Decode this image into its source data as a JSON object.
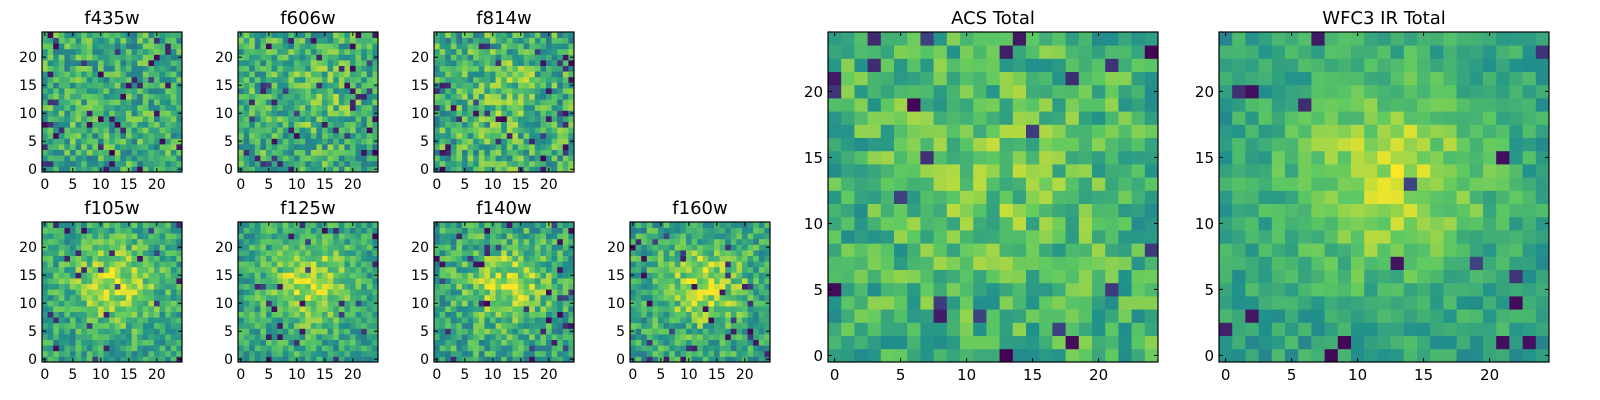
{
  "figure": {
    "description_colormap": "viridis",
    "colormap_stops": [
      "#440154",
      "#3b528b",
      "#21918c",
      "#5ec962",
      "#fde725"
    ]
  },
  "chart_data": [
    {
      "type": "heatmap",
      "title": "f435w",
      "grid_size": 25,
      "xlim": [
        0,
        24
      ],
      "ylim": [
        0,
        24
      ],
      "xticks": [
        "0",
        "5",
        "10",
        "15",
        "20"
      ],
      "yticks": [
        "0",
        "5",
        "10",
        "15",
        "20"
      ],
      "pattern": {
        "seed": 11,
        "mean": 0.62,
        "noise": 0.22,
        "blob": 0.0,
        "dark_fraction": 0.06
      }
    },
    {
      "type": "heatmap",
      "title": "f606w",
      "grid_size": 25,
      "xlim": [
        0,
        24
      ],
      "ylim": [
        0,
        24
      ],
      "xticks": [
        "0",
        "5",
        "10",
        "15",
        "20"
      ],
      "yticks": [
        "0",
        "5",
        "10",
        "15",
        "20"
      ],
      "pattern": {
        "seed": 23,
        "mean": 0.62,
        "noise": 0.22,
        "blob": 0.1,
        "dark_fraction": 0.06
      }
    },
    {
      "type": "heatmap",
      "title": "f814w",
      "grid_size": 25,
      "xlim": [
        0,
        24
      ],
      "ylim": [
        0,
        24
      ],
      "xticks": [
        "0",
        "5",
        "10",
        "15",
        "20"
      ],
      "yticks": [
        "0",
        "5",
        "10",
        "15",
        "20"
      ],
      "pattern": {
        "seed": 37,
        "mean": 0.62,
        "noise": 0.24,
        "blob": 0.1,
        "dark_fraction": 0.06
      }
    },
    {
      "type": "heatmap",
      "title": "f105w",
      "grid_size": 25,
      "xlim": [
        0,
        24
      ],
      "ylim": [
        0,
        24
      ],
      "xticks": [
        "0",
        "5",
        "10",
        "15",
        "20"
      ],
      "yticks": [
        "0",
        "5",
        "10",
        "15",
        "20"
      ],
      "pattern": {
        "seed": 41,
        "mean": 0.58,
        "noise": 0.18,
        "blob": 0.3,
        "dark_fraction": 0.05
      }
    },
    {
      "type": "heatmap",
      "title": "f125w",
      "grid_size": 25,
      "xlim": [
        0,
        24
      ],
      "ylim": [
        0,
        24
      ],
      "xticks": [
        "0",
        "5",
        "10",
        "15",
        "20"
      ],
      "yticks": [
        "0",
        "5",
        "10",
        "15",
        "20"
      ],
      "pattern": {
        "seed": 53,
        "mean": 0.58,
        "noise": 0.18,
        "blob": 0.3,
        "dark_fraction": 0.05
      }
    },
    {
      "type": "heatmap",
      "title": "f140w",
      "grid_size": 25,
      "xlim": [
        0,
        24
      ],
      "ylim": [
        0,
        24
      ],
      "xticks": [
        "0",
        "5",
        "10",
        "15",
        "20"
      ],
      "yticks": [
        "0",
        "5",
        "10",
        "15",
        "20"
      ],
      "pattern": {
        "seed": 67,
        "mean": 0.58,
        "noise": 0.2,
        "blob": 0.28,
        "dark_fraction": 0.05
      }
    },
    {
      "type": "heatmap",
      "title": "f160w",
      "grid_size": 25,
      "xlim": [
        0,
        24
      ],
      "ylim": [
        0,
        24
      ],
      "xticks": [
        "0",
        "5",
        "10",
        "15",
        "20"
      ],
      "yticks": [
        "0",
        "5",
        "10",
        "15",
        "20"
      ],
      "pattern": {
        "seed": 79,
        "mean": 0.58,
        "noise": 0.2,
        "blob": 0.28,
        "dark_fraction": 0.06
      }
    },
    {
      "type": "heatmap",
      "title": "ACS Total",
      "grid_size": 25,
      "xlim": [
        0,
        24
      ],
      "ylim": [
        0,
        24
      ],
      "xticks": [
        "0",
        "5",
        "10",
        "15",
        "20"
      ],
      "yticks": [
        "0",
        "5",
        "10",
        "15",
        "20"
      ],
      "pattern": {
        "seed": 97,
        "mean": 0.64,
        "noise": 0.18,
        "blob": 0.12,
        "dark_fraction": 0.04
      }
    },
    {
      "type": "heatmap",
      "title": "WFC3 IR Total",
      "grid_size": 25,
      "xlim": [
        0,
        24
      ],
      "ylim": [
        0,
        24
      ],
      "xticks": [
        "0",
        "5",
        "10",
        "15",
        "20"
      ],
      "yticks": [
        "0",
        "5",
        "10",
        "15",
        "20"
      ],
      "pattern": {
        "seed": 113,
        "mean": 0.56,
        "noise": 0.12,
        "blob": 0.34,
        "dark_fraction": 0.03
      }
    }
  ]
}
